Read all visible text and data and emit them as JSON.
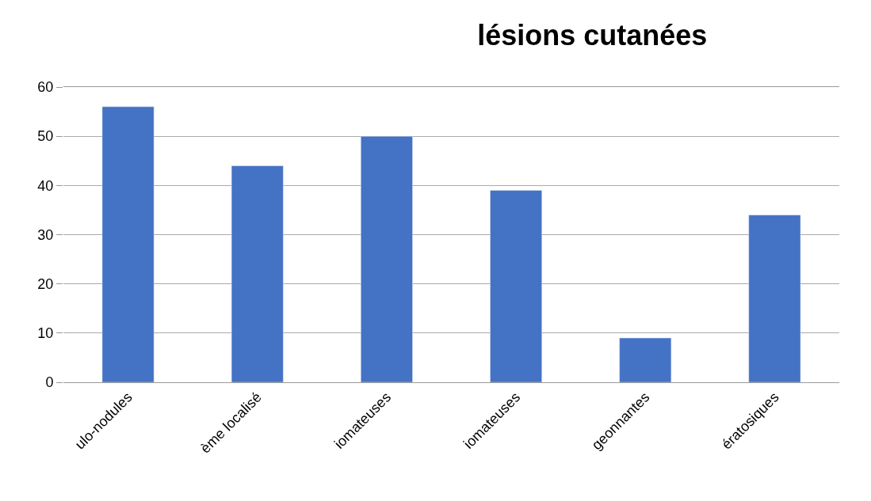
{
  "chart_data": {
    "type": "bar",
    "title": "lésions cutanées",
    "categories": [
      "ulo-nodules",
      "ème localisé",
      "iomateuses",
      "iomateuses",
      "geonnantes",
      "ératosiques"
    ],
    "values": [
      56,
      44,
      50,
      39,
      9,
      34
    ],
    "color": "#4472c4",
    "ylim": [
      0,
      60
    ],
    "yticks": [
      0,
      10,
      20,
      30,
      40,
      50,
      60
    ],
    "grid": "y"
  }
}
